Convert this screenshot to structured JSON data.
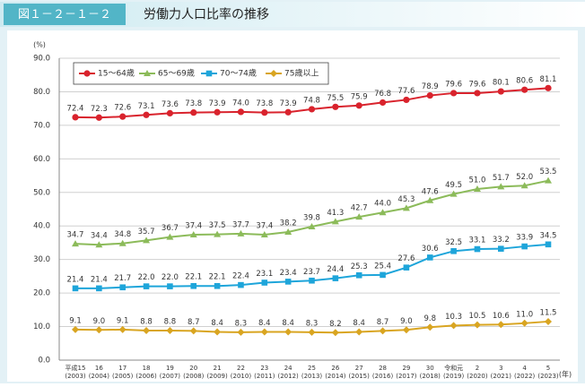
{
  "header": {
    "figure_number": "図１－２－１－２"
  },
  "chart_data": {
    "type": "line",
    "title": "労働力人口比率の推移",
    "y_unit": "(%)",
    "x_unit": "(年)",
    "categories": [
      "平成15",
      "16",
      "17",
      "18",
      "19",
      "20",
      "21",
      "22",
      "23",
      "24",
      "25",
      "26",
      "27",
      "28",
      "29",
      "30",
      "令和元",
      "2",
      "3",
      "4",
      "5"
    ],
    "category_sublabels": [
      "(2003)",
      "(2004)",
      "(2005)",
      "(2006)",
      "(2007)",
      "(2008)",
      "(2009)",
      "(2010)",
      "(2011)",
      "(2012)",
      "(2013)",
      "(2014)",
      "(2015)",
      "(2016)",
      "(2017)",
      "(2018)",
      "(2019)",
      "(2020)",
      "(2021)",
      "(2022)",
      "(2023)"
    ],
    "ylim": [
      0,
      90
    ],
    "yticks": [
      {
        "value": 0,
        "label": "0.0"
      },
      {
        "value": 10,
        "label": "10.0"
      },
      {
        "value": 20,
        "label": "20.0"
      },
      {
        "value": 30,
        "label": "30.0"
      },
      {
        "value": 40,
        "label": "40.0"
      },
      {
        "value": 50,
        "label": "50.0"
      },
      {
        "value": 60,
        "label": "60.0"
      },
      {
        "value": 70,
        "label": "70.0"
      },
      {
        "value": 80,
        "label": "80.0"
      },
      {
        "value": 90,
        "label": "90.0"
      }
    ],
    "grid": true,
    "series": [
      {
        "name": "15～64歳",
        "color": "#d9232d",
        "marker": "circle",
        "values": [
          72.4,
          72.3,
          72.6,
          73.1,
          73.6,
          73.8,
          73.9,
          74.0,
          73.8,
          73.9,
          74.8,
          75.5,
          75.9,
          76.8,
          77.6,
          78.9,
          79.6,
          79.6,
          80.1,
          80.6,
          81.1
        ],
        "value_labels": [
          "72.4",
          "72.3",
          "72.6",
          "73.1",
          "73.6",
          "73.8",
          "73.9",
          "74.0",
          "73.8",
          "73.9",
          "74.8",
          "75.5",
          "75.9",
          "76.8",
          "77.6",
          "78.9",
          "79.6",
          "79.6",
          "80.1",
          "80.6",
          "81.1"
        ]
      },
      {
        "name": "65～69歳",
        "color": "#8cbb5a",
        "marker": "triangle",
        "values": [
          34.7,
          34.4,
          34.8,
          35.7,
          36.7,
          37.4,
          37.5,
          37.7,
          37.4,
          38.2,
          39.8,
          41.3,
          42.7,
          44.0,
          45.3,
          47.6,
          49.5,
          51.0,
          51.7,
          52.0,
          53.5
        ],
        "value_labels": [
          "34.7",
          "34.4",
          "34.8",
          "35.7",
          "36.7",
          "37.4",
          "37.5",
          "37.7",
          "37.4",
          "38.2",
          "39.8",
          "41.3",
          "42.7",
          "44.0",
          "45.3",
          "47.6",
          "49.5",
          "51.0",
          "51.7",
          "52.0",
          "53.5"
        ]
      },
      {
        "name": "70～74歳",
        "color": "#1ea5da",
        "marker": "square",
        "values": [
          21.4,
          21.4,
          21.7,
          22.0,
          22.0,
          22.1,
          22.1,
          22.4,
          23.1,
          23.4,
          23.7,
          24.4,
          25.3,
          25.4,
          27.6,
          30.6,
          32.5,
          33.1,
          33.2,
          33.9,
          34.5
        ],
        "value_labels": [
          "21.4",
          "21.4",
          "21.7",
          "22.0",
          "22.0",
          "22.1",
          "22.1",
          "22.4",
          "23.1",
          "23.4",
          "23.7",
          "24.4",
          "25.3",
          "25.4",
          "27.6",
          "30.6",
          "32.5",
          "33.1",
          "33.2",
          "33.9",
          "34.5"
        ]
      },
      {
        "name": "75歳以上",
        "color": "#d9a521",
        "marker": "diamond",
        "values": [
          9.1,
          9.0,
          9.1,
          8.8,
          8.8,
          8.7,
          8.4,
          8.3,
          8.4,
          8.4,
          8.3,
          8.2,
          8.4,
          8.7,
          9.0,
          9.8,
          10.3,
          10.5,
          10.6,
          11.0,
          11.5
        ],
        "value_labels": [
          "9.1",
          "9.0",
          "9.1",
          "8.8",
          "8.8",
          "8.7",
          "8.4",
          "8.3",
          "8.4",
          "8.4",
          "8.3",
          "8.2",
          "8.4",
          "8.7",
          "9.0",
          "9.8",
          "10.3",
          "10.5",
          "10.6",
          "11.0",
          "11.5"
        ]
      }
    ]
  }
}
